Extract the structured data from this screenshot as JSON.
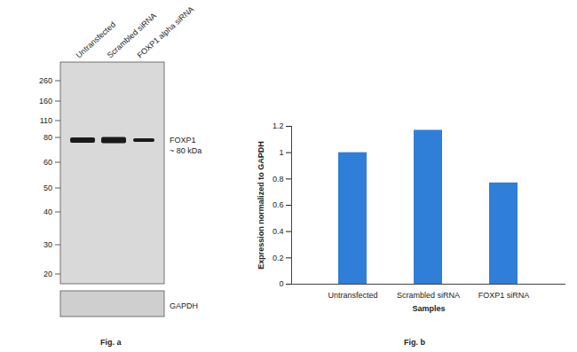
{
  "chart_data": {
    "type": "bar",
    "categories": [
      "Untransfected",
      "Scrambled siRNA",
      "FOXP1 siRNA"
    ],
    "values": [
      1,
      1.17,
      0.77
    ],
    "color": "#2f7ed8",
    "ylim": [
      0,
      1.2
    ],
    "yticks": [
      0,
      0.2,
      0.4,
      0.6,
      0.8,
      1,
      1.2
    ],
    "y_label": "Expression normalized to GAPDH",
    "x_label": "Samples",
    "grid": false
  },
  "blot": {
    "lanes": [
      "Untransfected",
      "Scrambled siRNA",
      "FOXP1 alpha siRNA"
    ],
    "markers": [
      260,
      160,
      110,
      80,
      60,
      50,
      40,
      30,
      20
    ],
    "band_label": [
      "FOXP1",
      "~ 80 kDa"
    ],
    "loading_control": "GAPDH"
  },
  "panel_labels": [
    "Fig. a",
    "Fig. b"
  ]
}
